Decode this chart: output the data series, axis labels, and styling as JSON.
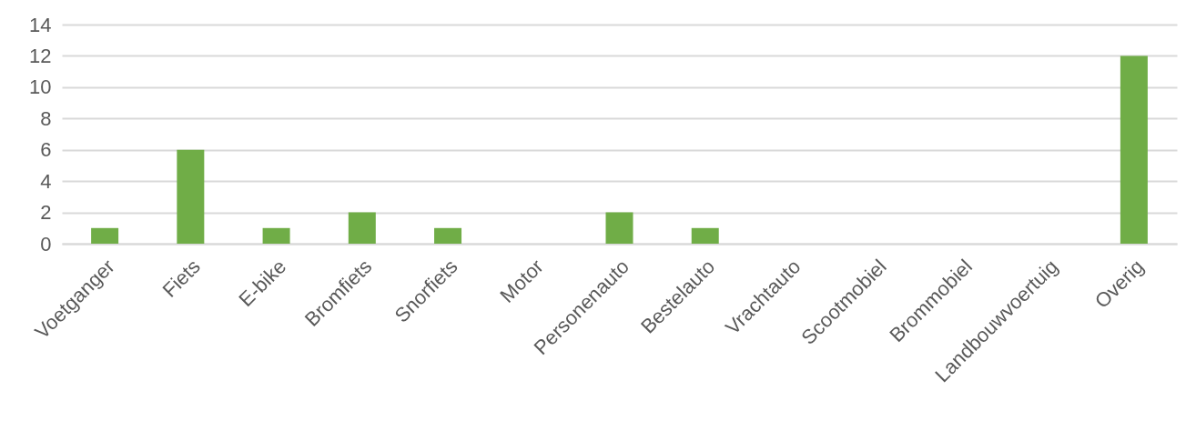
{
  "chart_data": {
    "type": "bar",
    "categories": [
      "Voetganger",
      "Fiets",
      "E-bike",
      "Bromfiets",
      "Snorfiets",
      "Motor",
      "Personenauto",
      "Bestelauto",
      "Vrachtauto",
      "Scootmobiel",
      "Brommobiel",
      "Landbouwvoertuig",
      "Overig"
    ],
    "values": [
      1,
      6,
      1,
      2,
      1,
      0,
      2,
      1,
      0,
      0,
      0,
      0,
      12
    ],
    "color": "#70ad47",
    "ylim": [
      0,
      14
    ],
    "yticks": [
      0,
      2,
      4,
      6,
      8,
      10,
      12,
      14
    ],
    "grid": "y"
  }
}
